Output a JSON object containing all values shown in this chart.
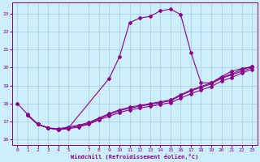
{
  "xlabel": "Windchill (Refroidissement éolien,°C)",
  "background_color": "#cceeff",
  "line_color": "#880088",
  "grid_color": "#aacccc",
  "xlim": [
    -0.5,
    23.5
  ],
  "ylim": [
    15.7,
    23.6
  ],
  "yticks": [
    16,
    17,
    18,
    19,
    20,
    21,
    22,
    23
  ],
  "xticks": [
    0,
    1,
    2,
    3,
    4,
    5,
    7,
    8,
    9,
    10,
    11,
    12,
    13,
    14,
    15,
    16,
    17,
    18,
    19,
    20,
    21,
    22,
    23
  ],
  "main_x": [
    0,
    1,
    2,
    3,
    4,
    5,
    9,
    10,
    11,
    12,
    13,
    14,
    15,
    16,
    17,
    18,
    19,
    20,
    21,
    22,
    23
  ],
  "main_y": [
    18.0,
    17.4,
    16.85,
    16.65,
    16.55,
    16.65,
    19.4,
    20.6,
    22.5,
    22.75,
    22.85,
    23.15,
    23.25,
    22.95,
    20.85,
    19.15,
    19.15,
    19.5,
    19.8,
    19.95,
    20.05
  ],
  "line2_x": [
    1,
    2,
    3,
    4,
    5,
    6,
    7,
    8,
    9,
    10,
    11,
    12,
    13,
    14,
    15,
    16,
    17,
    18,
    19,
    20,
    21,
    22,
    23
  ],
  "line2_y": [
    17.35,
    16.85,
    16.65,
    16.55,
    16.6,
    16.7,
    16.85,
    17.1,
    17.3,
    17.5,
    17.65,
    17.75,
    17.85,
    17.95,
    18.05,
    18.3,
    18.55,
    18.75,
    18.95,
    19.25,
    19.45,
    19.7,
    19.9
  ],
  "line3_x": [
    1,
    2,
    3,
    4,
    5,
    6,
    7,
    8,
    9,
    10,
    11,
    12,
    13,
    14,
    15,
    16,
    17,
    18,
    19,
    20,
    21,
    22,
    23
  ],
  "line3_y": [
    17.35,
    16.85,
    16.65,
    16.55,
    16.65,
    16.75,
    16.9,
    17.15,
    17.4,
    17.6,
    17.75,
    17.85,
    17.95,
    18.05,
    18.15,
    18.45,
    18.7,
    18.9,
    19.1,
    19.4,
    19.6,
    19.8,
    20.0
  ],
  "line4_x": [
    1,
    2,
    3,
    4,
    5,
    6,
    7,
    8,
    9,
    10,
    11,
    12,
    13,
    14,
    15,
    16,
    17,
    18,
    19,
    20,
    21,
    22,
    23
  ],
  "line4_y": [
    17.35,
    16.85,
    16.65,
    16.6,
    16.7,
    16.8,
    16.95,
    17.2,
    17.45,
    17.65,
    17.8,
    17.9,
    18.0,
    18.1,
    18.2,
    18.5,
    18.75,
    18.95,
    19.15,
    19.45,
    19.65,
    19.9,
    20.05
  ],
  "markersize": 2.0,
  "linewidth": 0.8
}
